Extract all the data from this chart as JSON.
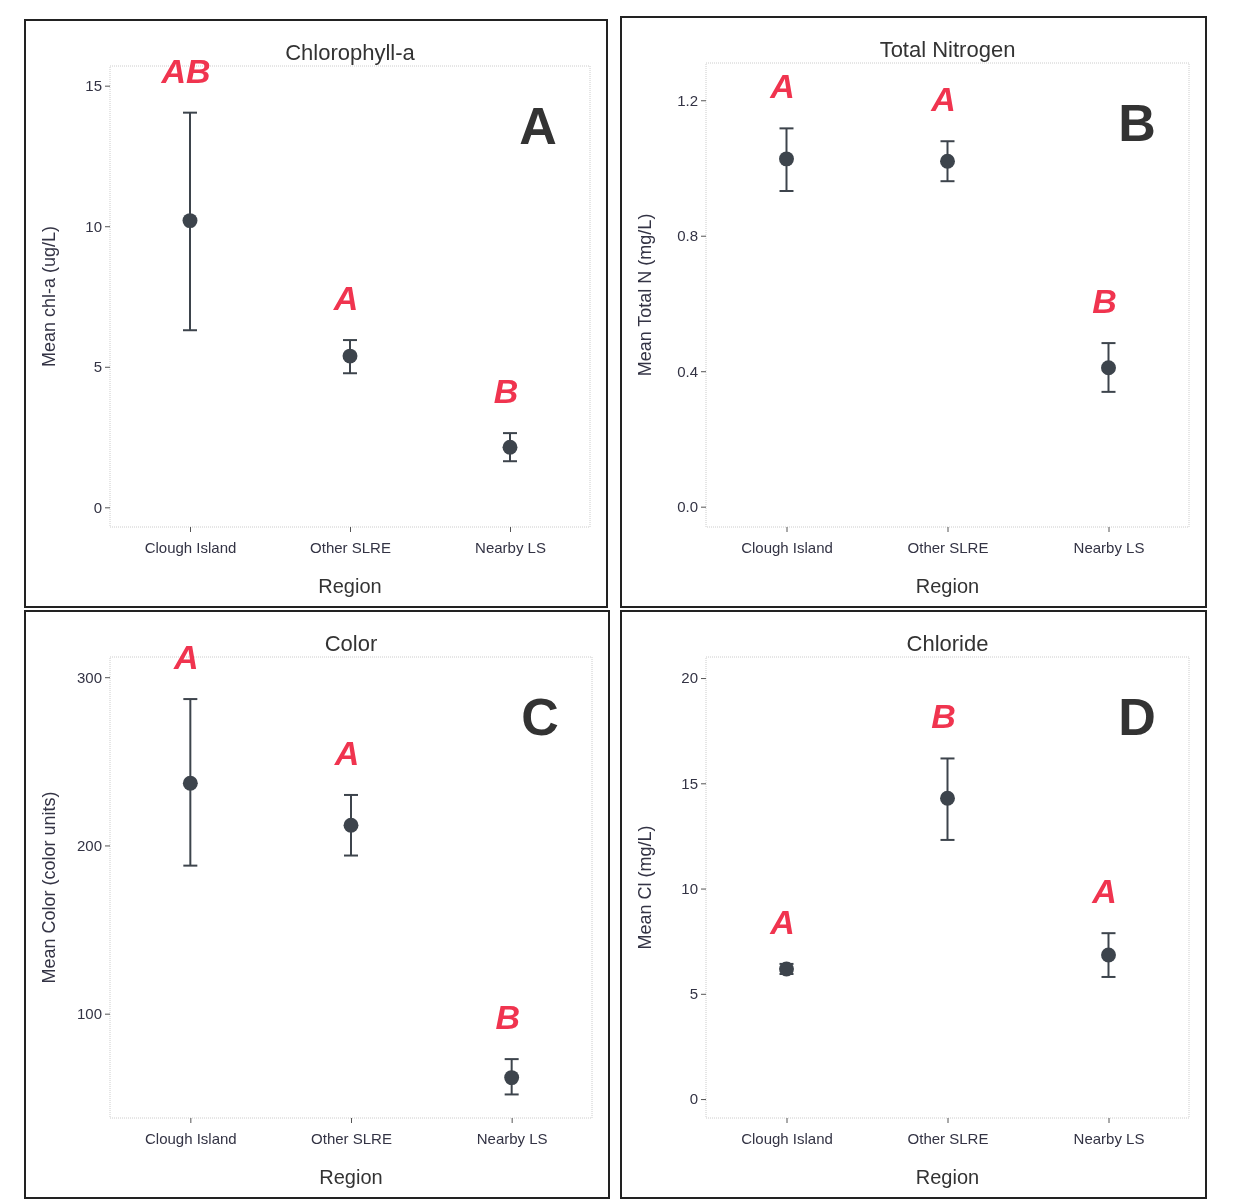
{
  "chart_data": [
    {
      "type": "scatter",
      "title": "Chlorophyll-a",
      "xlabel": "Region",
      "ylabel": "Mean chl-a (ug/L)",
      "categories": [
        "Clough Island",
        "Other SLRE",
        "Nearby LS"
      ],
      "marker": "circle",
      "series": [
        {
          "color": "#3d444c",
          "values": [
            10.2,
            5.38,
            2.14
          ],
          "errors": [
            [
              6.3,
              14.04
            ],
            [
              4.77,
              5.95
            ],
            [
              1.64,
              2.64
            ]
          ]
        }
      ],
      "ylim": [
        -0.7,
        15.7
      ],
      "yticks": [
        0,
        5,
        10,
        15
      ],
      "annotations": [
        "A",
        "AB",
        "A",
        "B"
      ]
    },
    {
      "type": "scatter",
      "title": "Total Nitrogen",
      "xlabel": "Region",
      "ylabel": "Mean Total N (mg/L)",
      "categories": [
        "Clough Island",
        "Other SLRE",
        "Nearby LS"
      ],
      "marker": "circle",
      "series": [
        {
          "color": "#3d444c",
          "values": [
            1.027,
            1.02,
            0.41
          ],
          "errors": [
            [
              0.932,
              1.117
            ],
            [
              0.961,
              1.079
            ],
            [
              0.339,
              0.483
            ]
          ]
        }
      ],
      "ylim": [
        -0.06,
        1.31
      ],
      "yticks": [
        {
          "value": 0,
          "label": "0.0"
        },
        0.4,
        0.8,
        1.2
      ],
      "annotations": [
        "B",
        "A",
        "A",
        "B"
      ]
    },
    {
      "type": "scatter",
      "title": "Color",
      "xlabel": "Region",
      "ylabel": "Mean Color (color units)",
      "categories": [
        "Clough Island",
        "Other SLRE",
        "Nearby LS"
      ],
      "marker": "circle",
      "series": [
        {
          "color": "#3d444c",
          "values": [
            237,
            212,
            62
          ],
          "errors": [
            [
              188,
              287
            ],
            [
              194,
              230
            ],
            [
              52,
              73
            ]
          ]
        }
      ],
      "ylim": [
        38,
        312
      ],
      "yticks": [
        100,
        200,
        300
      ],
      "annotations": [
        "C",
        "A",
        "A",
        "B"
      ]
    },
    {
      "type": "scatter",
      "title": "Chloride",
      "xlabel": "Region",
      "ylabel": "Mean Cl (mg/L)",
      "categories": [
        "Clough Island",
        "Other SLRE",
        "Nearby LS"
      ],
      "marker": "circle",
      "series": [
        {
          "color": "#3d444c",
          "values": [
            6.18,
            14.29,
            6.84
          ],
          "errors": [
            [
              5.94,
              6.42
            ],
            [
              12.31,
              16.18
            ],
            [
              5.8,
              7.88
            ]
          ]
        }
      ],
      "ylim": [
        -0.9,
        21
      ],
      "yticks": [
        0,
        5,
        10,
        15,
        20
      ],
      "annotations": [
        "D",
        "A",
        "B",
        "A"
      ]
    }
  ]
}
